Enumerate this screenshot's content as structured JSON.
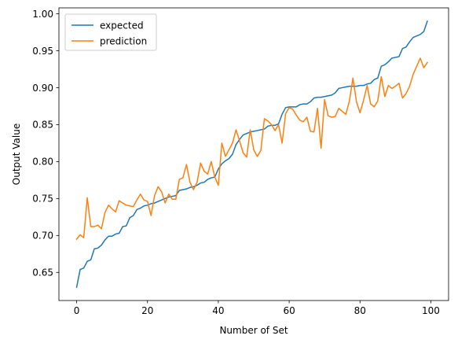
{
  "chart_data": {
    "type": "line",
    "title": "",
    "xlabel": "Number of Set",
    "ylabel": "Output Value",
    "xlim": [
      -5,
      105
    ],
    "ylim": [
      0.612,
      1.008
    ],
    "xticks": [
      0,
      20,
      40,
      60,
      80,
      100
    ],
    "xtick_labels": [
      "0",
      "20",
      "40",
      "60",
      "80",
      "100"
    ],
    "yticks": [
      0.65,
      0.7,
      0.75,
      0.8,
      0.85,
      0.9,
      0.95,
      1.0
    ],
    "ytick_labels": [
      "0.65",
      "0.70",
      "0.75",
      "0.80",
      "0.85",
      "0.90",
      "0.95",
      "1.00"
    ],
    "grid": false,
    "legend_position": "upper-left",
    "x": [
      0,
      1,
      2,
      3,
      4,
      5,
      6,
      7,
      8,
      9,
      10,
      11,
      12,
      13,
      14,
      15,
      16,
      17,
      18,
      19,
      20,
      21,
      22,
      23,
      24,
      25,
      26,
      27,
      28,
      29,
      30,
      31,
      32,
      33,
      34,
      35,
      36,
      37,
      38,
      39,
      40,
      41,
      42,
      43,
      44,
      45,
      46,
      47,
      48,
      49,
      50,
      51,
      52,
      53,
      54,
      55,
      56,
      57,
      58,
      59,
      60,
      61,
      62,
      63,
      64,
      65,
      66,
      67,
      68,
      69,
      70,
      71,
      72,
      73,
      74,
      75,
      76,
      77,
      78,
      79,
      80,
      81,
      82,
      83,
      84,
      85,
      86,
      87,
      88,
      89,
      90,
      91,
      92,
      93,
      94,
      95,
      96,
      97,
      98,
      99
    ],
    "series": [
      {
        "name": "expected",
        "color": "#1f77b4",
        "values": [
          0.63,
          0.654,
          0.656,
          0.665,
          0.667,
          0.682,
          0.683,
          0.687,
          0.694,
          0.699,
          0.699,
          0.702,
          0.703,
          0.712,
          0.713,
          0.724,
          0.727,
          0.735,
          0.737,
          0.74,
          0.741,
          0.743,
          0.744,
          0.746,
          0.748,
          0.75,
          0.752,
          0.753,
          0.754,
          0.761,
          0.762,
          0.763,
          0.765,
          0.766,
          0.768,
          0.771,
          0.772,
          0.776,
          0.778,
          0.779,
          0.79,
          0.797,
          0.801,
          0.804,
          0.81,
          0.823,
          0.83,
          0.836,
          0.838,
          0.84,
          0.841,
          0.842,
          0.843,
          0.844,
          0.848,
          0.849,
          0.849,
          0.851,
          0.864,
          0.873,
          0.874,
          0.874,
          0.874,
          0.877,
          0.878,
          0.878,
          0.881,
          0.886,
          0.887,
          0.887,
          0.888,
          0.889,
          0.89,
          0.893,
          0.899,
          0.9,
          0.901,
          0.902,
          0.902,
          0.902,
          0.903,
          0.903,
          0.905,
          0.906,
          0.911,
          0.913,
          0.929,
          0.931,
          0.935,
          0.94,
          0.941,
          0.942,
          0.953,
          0.955,
          0.962,
          0.968,
          0.97,
          0.972,
          0.976,
          0.99
        ]
      },
      {
        "name": "prediction",
        "color": "#ff7f0e",
        "values": [
          0.695,
          0.701,
          0.697,
          0.751,
          0.712,
          0.712,
          0.714,
          0.709,
          0.731,
          0.741,
          0.736,
          0.732,
          0.747,
          0.744,
          0.741,
          0.74,
          0.739,
          0.748,
          0.756,
          0.748,
          0.746,
          0.727,
          0.754,
          0.766,
          0.759,
          0.744,
          0.756,
          0.749,
          0.749,
          0.776,
          0.778,
          0.796,
          0.772,
          0.762,
          0.772,
          0.798,
          0.787,
          0.783,
          0.8,
          0.779,
          0.768,
          0.825,
          0.807,
          0.816,
          0.825,
          0.843,
          0.828,
          0.812,
          0.806,
          0.843,
          0.816,
          0.807,
          0.815,
          0.858,
          0.855,
          0.85,
          0.842,
          0.85,
          0.825,
          0.865,
          0.873,
          0.871,
          0.863,
          0.856,
          0.854,
          0.86,
          0.841,
          0.84,
          0.872,
          0.818,
          0.884,
          0.862,
          0.86,
          0.861,
          0.872,
          0.868,
          0.864,
          0.882,
          0.913,
          0.881,
          0.866,
          0.883,
          0.903,
          0.878,
          0.874,
          0.882,
          0.915,
          0.888,
          0.903,
          0.899,
          0.902,
          0.906,
          0.886,
          0.892,
          0.902,
          0.918,
          0.929,
          0.94,
          0.927,
          0.934
        ]
      }
    ]
  }
}
